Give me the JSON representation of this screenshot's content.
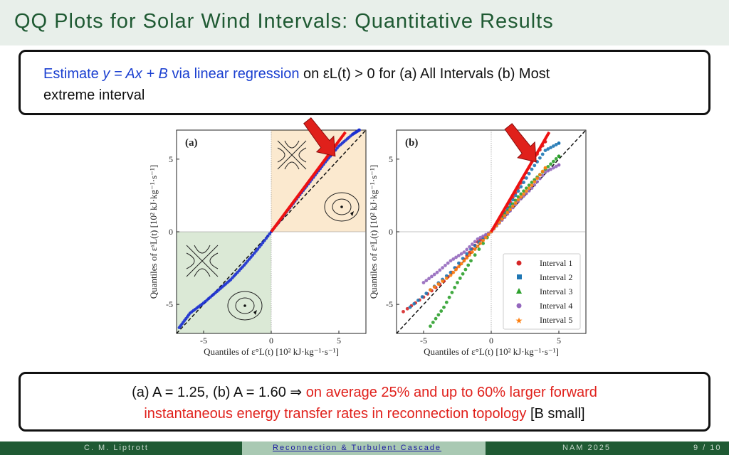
{
  "title": "QQ Plots for Solar Wind Intervals: Quantitative Results",
  "top_box": {
    "estimate": "Estimate",
    "equation": "y = Ax + B",
    "via": "via linear regression",
    "condition": "on εL(t) > 0 for (a) All Intervals (b) Most",
    "line2": "extreme interval"
  },
  "bottom_box": {
    "values": "(a) A = 1.25, (b) A = 1.60 ⇒",
    "red1": "on average 25% and up to 60% larger forward",
    "red2": "instantaneous energy transfer rates in reconnection topology",
    "tail": "[B small]"
  },
  "footer": {
    "author": "C. M. Liptrott",
    "talk": "Reconnection & Turbulent Cascade",
    "venue": "NAM 2025",
    "page": "9 / 10"
  },
  "colors": {
    "title_green": "#1f5a33",
    "blue": "#1a3fd0",
    "red": "#e0201b"
  },
  "figure": {
    "panel_a_label": "(a)",
    "panel_b_label": "(b)",
    "xlabel": "Quantiles of ε°L(t) [10² kJ·kg⁻¹·s⁻¹]",
    "ylabel": "Quantiles of εˣL(t) [10² kJ·kg⁻¹·s⁻¹]",
    "ticks": [
      "-5",
      "0",
      "5"
    ],
    "legend": [
      {
        "label": "Interval 1",
        "color": "#d62728",
        "marker": "circle"
      },
      {
        "label": "Interval 2",
        "color": "#1f77b4",
        "marker": "square"
      },
      {
        "label": "Interval 3",
        "color": "#2ca02c",
        "marker": "triangle"
      },
      {
        "label": "Interval 4",
        "color": "#9467bd",
        "marker": "circle"
      },
      {
        "label": "Interval 5",
        "color": "#ff7f0e",
        "marker": "star"
      }
    ]
  },
  "chart_data": [
    {
      "type": "scatter",
      "title": "(a)",
      "xlabel": "Quantiles of ε°L(t) [10² kJ·kg⁻¹·s⁻¹]",
      "ylabel": "Quantiles of εˣL(t) [10² kJ·kg⁻¹·s⁻¹]",
      "xlim": [
        -7,
        7
      ],
      "ylim": [
        -7,
        7
      ],
      "series": [
        {
          "x": [
            -6.8,
            -6.0,
            -5.0,
            -4.0,
            -3.0,
            -2.0,
            -1.0,
            0,
            1,
            2,
            3,
            4,
            5,
            6,
            6.5
          ],
          "y": [
            -6.6,
            -5.6,
            -4.9,
            -4.1,
            -3.3,
            -2.3,
            -1.2,
            0,
            1.2,
            2.4,
            3.6,
            4.8,
            5.9,
            6.7,
            7.0
          ]
        }
      ],
      "fit": {
        "A": 1.25,
        "B": 0
      }
    },
    {
      "type": "scatter",
      "title": "(b)",
      "xlabel": "Quantiles of ε°L(t) [10² kJ·kg⁻¹·s⁻¹]",
      "ylabel": "Quantiles of εˣL(t) [10² kJ·kg⁻¹·s⁻¹]",
      "xlim": [
        -7,
        7
      ],
      "ylim": [
        -7,
        7
      ],
      "series": [
        {
          "name": "Interval 1",
          "x": [
            -6.5,
            -5,
            -3.5,
            -2,
            -1,
            0,
            1,
            2,
            3,
            4
          ],
          "y": [
            -5.5,
            -4.5,
            -3.4,
            -1.9,
            -0.7,
            0,
            1.4,
            3.0,
            4.8,
            6.2
          ]
        },
        {
          "name": "Interval 2",
          "x": [
            -6,
            -4.5,
            -3,
            -1.5,
            0,
            1,
            2,
            3,
            4,
            5
          ],
          "y": [
            -5.2,
            -4.0,
            -2.8,
            -1.2,
            0,
            1.3,
            2.8,
            4.3,
            5.6,
            6.1
          ]
        },
        {
          "name": "Interval 3",
          "x": [
            -4.5,
            -3.5,
            -2.5,
            -1.5,
            0,
            1,
            2,
            3,
            4,
            5
          ],
          "y": [
            -6.5,
            -5.2,
            -3.5,
            -2.0,
            0,
            1.2,
            2.4,
            3.4,
            4.3,
            5.2
          ]
        },
        {
          "name": "Interval 4",
          "x": [
            -5,
            -4,
            -3,
            -2,
            -1,
            0,
            1,
            2,
            3,
            4,
            5
          ],
          "y": [
            -3.5,
            -2.8,
            -2.0,
            -1.4,
            -0.5,
            0,
            1.0,
            2.1,
            3.0,
            4.1,
            4.6
          ]
        },
        {
          "name": "Interval 5",
          "x": [
            -4.5,
            -3,
            -2,
            -1,
            0,
            1,
            2,
            3,
            4
          ],
          "y": [
            -4.0,
            -3.0,
            -2.0,
            -1.0,
            0,
            1.1,
            2.2,
            3.2,
            4.4
          ]
        }
      ],
      "fit": {
        "A": 1.6,
        "B": 0
      }
    }
  ]
}
